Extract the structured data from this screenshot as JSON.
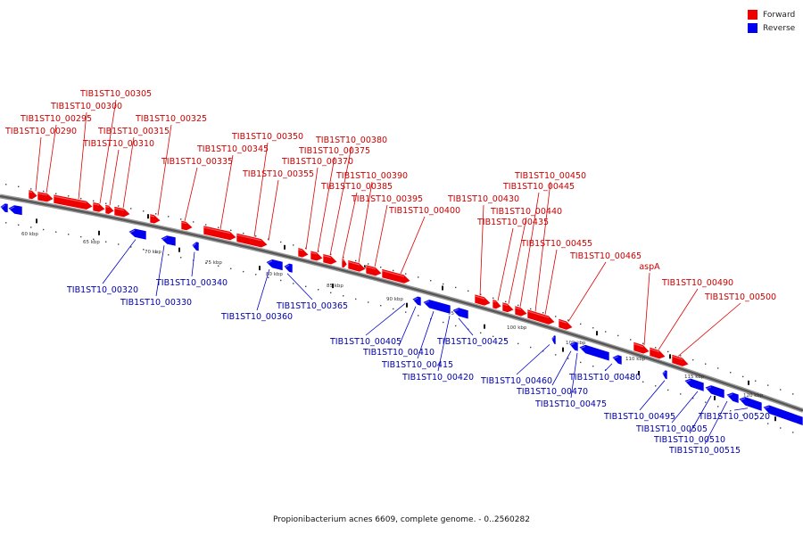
{
  "legend": [
    {
      "label": "Forward",
      "color": "#ee0000"
    },
    {
      "label": "Reverse",
      "color": "#0000ee"
    }
  ],
  "caption": "Propionibacterium acnes 6609, complete genome. - 0..2560282",
  "colors": {
    "forward": "#ee0000",
    "forward_label": "#cc0000",
    "reverse": "#0000ee",
    "reverse_label": "#0000aa",
    "backbone": "#555555"
  },
  "axis": {
    "unit": "kbp",
    "tick_labels": [
      "60 kbp",
      "65 kbp",
      "70 kbp",
      "75 kbp",
      "80 kbp",
      "85 kbp",
      "90 kbp",
      "95 kbp",
      "100 kbp",
      "105 kbp",
      "110 kbp",
      "115 kbp",
      "120 kbp"
    ]
  },
  "forward_genes": [
    "TIB1ST10_00290",
    "TIB1ST10_00295",
    "TIB1ST10_00300",
    "TIB1ST10_00305",
    "TIB1ST10_00310",
    "TIB1ST10_00315",
    "TIB1ST10_00325",
    "TIB1ST10_00335",
    "TIB1ST10_00345",
    "TIB1ST10_00350",
    "TIB1ST10_00355",
    "TIB1ST10_00370",
    "TIB1ST10_00375",
    "TIB1ST10_00380",
    "TIB1ST10_00385",
    "TIB1ST10_00390",
    "TIB1ST10_00395",
    "TIB1ST10_00400",
    "TIB1ST10_00430",
    "TIB1ST10_00435",
    "TIB1ST10_00440",
    "TIB1ST10_00445",
    "TIB1ST10_00450",
    "TIB1ST10_00455",
    "TIB1ST10_00465",
    "aspA",
    "TIB1ST10_00490",
    "TIB1ST10_00500"
  ],
  "reverse_genes": [
    "TIB1ST10_00320",
    "TIB1ST10_00330",
    "TIB1ST10_00340",
    "TIB1ST10_00360",
    "TIB1ST10_00365",
    "TIB1ST10_00405",
    "TIB1ST10_00410",
    "TIB1ST10_00415",
    "TIB1ST10_00420",
    "TIB1ST10_00425",
    "TIB1ST10_00460",
    "TIB1ST10_00470",
    "TIB1ST10_00475",
    "TIB1ST10_00480",
    "TIB1ST10_00495",
    "TIB1ST10_00505",
    "TIB1ST10_00510",
    "TIB1ST10_00515",
    "TIB1ST10_00520"
  ]
}
